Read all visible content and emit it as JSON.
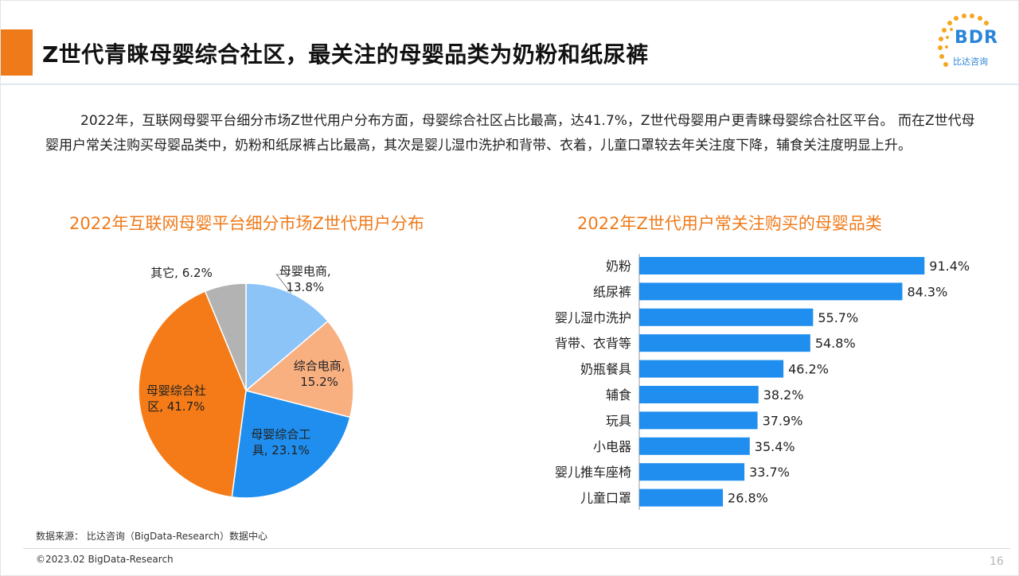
{
  "header": {
    "title": "Z世代青睐母婴综合社区，最关注的母婴品类为奶粉和纸尿裤",
    "logo_text": "BDR",
    "logo_subtitle": "比达咨询"
  },
  "intro_text": "2022年，互联网母婴平台细分市场Z世代用户分布方面，母婴综合社区占比最高，达41.7%，Z世代母婴用户更青睐母婴综合社区平台。 而在Z世代母婴用户常关注购买母婴品类中，奶粉和纸尿裤占比最高，其次是婴儿湿巾洗护和背带、衣着，儿童口罩较去年关注度下降，辅食关注度明显上升。",
  "chart_data": [
    {
      "type": "pie",
      "title": "2022年互联网母婴平台细分市场Z世代用户分布",
      "categories": [
        "母婴电商",
        "综合电商",
        "母婴综合工具",
        "母婴综合社区",
        "其它"
      ],
      "values": [
        13.8,
        15.2,
        23.1,
        41.7,
        6.2
      ],
      "labels": [
        [
          "母婴电商,",
          "13.8%"
        ],
        [
          "综合电商,",
          "15.2%"
        ],
        [
          "母婴综合工",
          "具, 23.1%"
        ],
        [
          "母婴综合社",
          "区, 41.7%"
        ],
        [
          "其它, 6.2%"
        ]
      ],
      "colors": [
        "#8cc4f8",
        "#f9b081",
        "#1f8eee",
        "#f47b17",
        "#b3b3b3"
      ],
      "unit": "%"
    },
    {
      "type": "bar",
      "orientation": "horizontal",
      "title": "2022年Z世代用户常关注购买的母婴品类",
      "categories": [
        "奶粉",
        "纸尿裤",
        "婴儿湿巾洗护",
        "背带、衣背等",
        "奶瓶餐具",
        "辅食",
        "玩具",
        "小电器",
        "婴儿推车座椅",
        "儿童口罩"
      ],
      "values": [
        91.4,
        84.3,
        55.7,
        54.8,
        46.2,
        38.2,
        37.9,
        35.4,
        33.7,
        26.8
      ],
      "value_labels": [
        "91.4%",
        "84.3%",
        "55.7%",
        "54.8%",
        "46.2%",
        "38.2%",
        "37.9%",
        "35.4%",
        "33.7%",
        "26.8%"
      ],
      "xlim": [
        0,
        100
      ],
      "bar_color": "#1f8eee",
      "unit": "%"
    }
  ],
  "footer": {
    "source": "数据来源： 比达咨询（BigData-Research）数据中心",
    "copyright": "©2023.02 BigData-Research",
    "page_number": "16"
  }
}
